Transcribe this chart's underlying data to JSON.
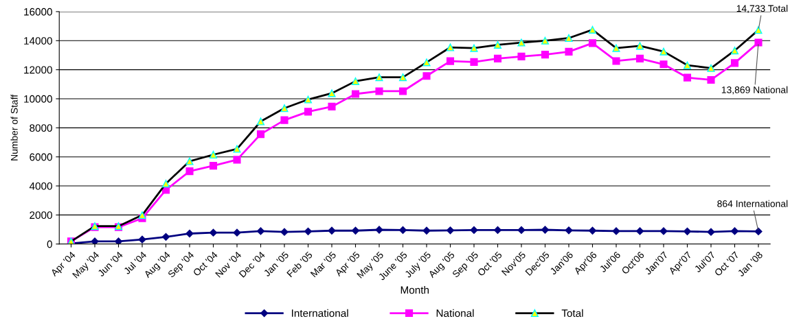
{
  "chart_data": {
    "type": "line",
    "xlabel": "Month",
    "ylabel": "Number of Staff",
    "categories": [
      "Apr '04",
      "May '04",
      "Jun '04",
      "Jul '04",
      "Aug '04",
      "Sep '04",
      "Oct '04",
      "Nov '04",
      "Dec '04",
      "Jan '05",
      "Feb '05",
      "Mar '05",
      "Apr '05",
      "May '05",
      "June '05",
      "July '05",
      "Aug '05",
      "Sep '05",
      "Oct '05",
      "Nov'05",
      "Dec'05",
      "Jan'06",
      "Apr'06",
      "Jul'06",
      "Oct'06",
      "Jan'07",
      "Apr'07",
      "Jul'07",
      "Oct '07",
      "Jan '08"
    ],
    "series": [
      {
        "name": "International",
        "color": "#000080",
        "marker": "diamond",
        "values": [
          40,
          180,
          180,
          310,
          490,
          720,
          780,
          780,
          890,
          830,
          870,
          920,
          920,
          980,
          960,
          920,
          940,
          960,
          960,
          960,
          980,
          940,
          920,
          890,
          890,
          890,
          870,
          830,
          890,
          864
        ]
      },
      {
        "name": "National",
        "color": "#ff00ff",
        "marker": "square",
        "values": [
          180,
          1160,
          1160,
          1770,
          3720,
          5010,
          5390,
          5800,
          7560,
          8530,
          9110,
          9460,
          10330,
          10520,
          10520,
          11570,
          12590,
          12530,
          12770,
          12910,
          13040,
          13240,
          13830,
          12600,
          12770,
          12370,
          11460,
          11300,
          12460,
          13869
        ]
      },
      {
        "name": "Total",
        "color": "#000000",
        "marker": "triangle",
        "values": [
          180,
          1230,
          1230,
          1990,
          4160,
          5700,
          6150,
          6550,
          8440,
          9350,
          9950,
          10380,
          11210,
          11480,
          11480,
          12510,
          13540,
          13490,
          13710,
          13870,
          14000,
          14180,
          14750,
          13490,
          13640,
          13250,
          12310,
          12110,
          13320,
          14733
        ]
      }
    ],
    "ylim": [
      0,
      16000
    ],
    "yticks": [
      0,
      2000,
      4000,
      6000,
      8000,
      10000,
      12000,
      14000,
      16000
    ],
    "grid": "y",
    "legend": "bottom",
    "annotations": [
      {
        "text": "14,733 Total",
        "x": "Jan '08",
        "y": 14733
      },
      {
        "text": "13,869 National",
        "x": "Jan '08",
        "y": 13869
      },
      {
        "text": "864 International",
        "x": "Jan '08",
        "y": 864
      }
    ]
  }
}
